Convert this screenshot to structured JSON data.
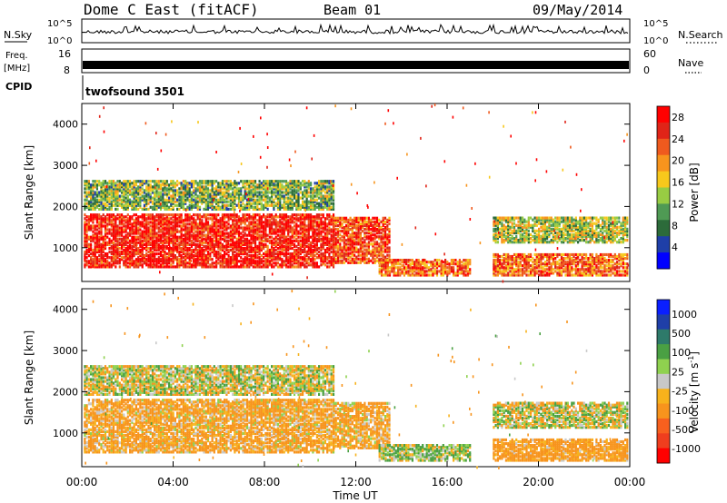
{
  "header": {
    "station": "Dome C East (fitACF)",
    "beam": "Beam 01",
    "date": "09/May/2014"
  },
  "noise_panel": {
    "left_label": "N.Sky",
    "left_ticks": [
      "10^5",
      "10^0"
    ],
    "right_ticks": [
      "10^5",
      "10^0"
    ],
    "right_label": "N.Search"
  },
  "freq_panel": {
    "label_line1": "Freq.",
    "label_line2": "[MHz]",
    "left_ticks": [
      "16",
      "8"
    ],
    "right_ticks": [
      "60",
      "0"
    ],
    "right_label": "Nave"
  },
  "cpid_panel": {
    "label": "CPID",
    "value": "twofsound 3501"
  },
  "colors": {
    "power_scale": [
      "#0000ff",
      "#1f3fa8",
      "#2c6b3a",
      "#4f9a54",
      "#98cc43",
      "#f7c81c",
      "#f7941d",
      "#ef5a1e",
      "#e02418",
      "#ff0000"
    ],
    "velocity_scale": [
      "#ff0000",
      "#ef3e1e",
      "#f7601e",
      "#f7941d",
      "#f7b21c",
      "#c8c8c8",
      "#8fd14f",
      "#4aa043",
      "#2e7a6a",
      "#1f3fa8",
      "#0a1fff"
    ]
  },
  "chart_data": [
    {
      "type": "heatmap",
      "panel": "power",
      "ylabel": "Slant Range [km]",
      "xlabel": "",
      "x_ticks": [
        "00:00",
        "04:00",
        "08:00",
        "12:00",
        "16:00",
        "20:00",
        "00:00"
      ],
      "y_ticks": [
        "1000",
        "2000",
        "3000",
        "4000"
      ],
      "ylim": [
        180,
        4500
      ],
      "colorbar_label": "Power [dB]",
      "colorbar_ticks": [
        "4",
        "8",
        "12",
        "16",
        "20",
        "24",
        "28"
      ],
      "colorbar_range": [
        0,
        30
      ],
      "echo_regions": [
        {
          "t0": 0,
          "t1": 11,
          "r0": 500,
          "r1": 1800,
          "value": 27
        },
        {
          "t0": 0,
          "t1": 11,
          "r0": 1900,
          "r1": 2600,
          "value": 12
        },
        {
          "t0": 11,
          "t1": 13.5,
          "r0": 600,
          "r1": 1700,
          "value": 24
        },
        {
          "t0": 13,
          "t1": 17,
          "r0": 300,
          "r1": 700,
          "value": 22
        },
        {
          "t0": 18,
          "t1": 24,
          "r0": 300,
          "r1": 800,
          "value": 22
        },
        {
          "t0": 18,
          "t1": 24,
          "r0": 1100,
          "r1": 1700,
          "value": 14
        }
      ]
    },
    {
      "type": "heatmap",
      "panel": "velocity",
      "ylabel": "Slant Range [km]",
      "xlabel": "Time UT",
      "x_ticks": [
        "00:00",
        "04:00",
        "08:00",
        "12:00",
        "16:00",
        "20:00",
        "00:00"
      ],
      "y_ticks": [
        "1000",
        "2000",
        "3000",
        "4000"
      ],
      "ylim": [
        180,
        4500
      ],
      "colorbar_label": "Velocity [m s^-1]",
      "colorbar_ticks": [
        "1000",
        "500",
        "100",
        "25",
        "-25",
        "-100",
        "-500",
        "-1000"
      ],
      "echo_regions": [
        {
          "t0": 0,
          "t1": 11,
          "r0": 500,
          "r1": 1800,
          "value": -150
        },
        {
          "t0": 0,
          "t1": 11,
          "r0": 1900,
          "r1": 2600,
          "value": 0
        },
        {
          "t0": 11,
          "t1": 13.5,
          "r0": 600,
          "r1": 1700,
          "value": -150
        },
        {
          "t0": 13,
          "t1": 17,
          "r0": 300,
          "r1": 700,
          "value": 80
        },
        {
          "t0": 18,
          "t1": 24,
          "r0": 300,
          "r1": 800,
          "value": -200
        },
        {
          "t0": 18,
          "t1": 24,
          "r0": 1100,
          "r1": 1700,
          "value": 0
        }
      ]
    }
  ]
}
